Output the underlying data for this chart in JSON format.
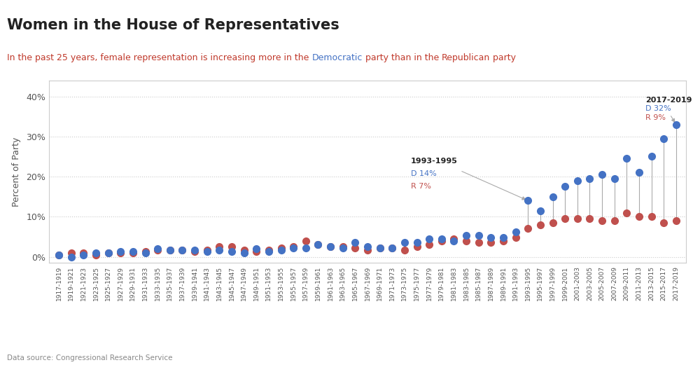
{
  "title": "Women in the House of Representatives",
  "ylabel": "Percent of Party",
  "datasource": "Data source: Congressional Research Service",
  "dem_color": "#4472c4",
  "rep_color": "#c0504d",
  "line_color": "#aaaaaa",
  "background_color": "#ffffff",
  "border_color": "#cccccc",
  "yticks": [
    0,
    10,
    20,
    30,
    40
  ],
  "ytick_labels": [
    "0%",
    "10%",
    "20%",
    "30%",
    "40%"
  ],
  "ylim": [
    -1.5,
    44
  ],
  "congress_terms": [
    "1917-1919",
    "1919-1921",
    "1921-1923",
    "1923-1925",
    "1925-1927",
    "1927-1929",
    "1929-1931",
    "1931-1933",
    "1933-1935",
    "1935-1937",
    "1937-1939",
    "1939-1941",
    "1941-1943",
    "1943-1945",
    "1945-1947",
    "1947-1949",
    "1949-1951",
    "1951-1953",
    "1953-1955",
    "1955-1957",
    "1957-1959",
    "1959-1961",
    "1961-1963",
    "1963-1965",
    "1965-1967",
    "1967-1969",
    "1969-1971",
    "1971-1973",
    "1973-1975",
    "1975-1977",
    "1977-1979",
    "1979-1981",
    "1981-1983",
    "1983-1985",
    "1985-1987",
    "1987-1989",
    "1989-1991",
    "1991-1993",
    "1993-1995",
    "1995-1997",
    "1997-1999",
    "1999-2001",
    "2001-2003",
    "2003-2005",
    "2005-2007",
    "2007-2009",
    "2009-2011",
    "2011-2013",
    "2013-2015",
    "2015-2017",
    "2017-2019"
  ],
  "dem_pct": [
    0.4,
    0.0,
    0.4,
    0.9,
    0.9,
    1.3,
    1.3,
    0.9,
    2.0,
    1.7,
    1.7,
    1.7,
    1.3,
    1.7,
    1.3,
    0.9,
    2.0,
    1.3,
    1.7,
    2.2,
    2.2,
    3.1,
    2.6,
    2.2,
    3.5,
    2.6,
    2.2,
    2.2,
    3.5,
    3.5,
    4.4,
    4.4,
    4.0,
    5.3,
    5.3,
    4.8,
    4.8,
    6.2,
    14.0,
    11.5,
    15.0,
    17.5,
    19.0,
    19.5,
    20.5,
    19.5,
    24.5,
    21.0,
    25.0,
    29.5,
    33.0
  ],
  "rep_pct": [
    0.4,
    0.9,
    0.9,
    0.4,
    0.9,
    0.9,
    0.9,
    1.3,
    1.7,
    1.7,
    1.7,
    1.3,
    1.7,
    2.6,
    2.6,
    1.7,
    1.3,
    1.7,
    2.2,
    2.6,
    4.0,
    3.1,
    2.6,
    2.6,
    2.2,
    1.7,
    2.2,
    2.2,
    1.7,
    2.6,
    3.1,
    4.0,
    4.4,
    4.0,
    3.5,
    3.5,
    4.0,
    4.8,
    7.0,
    8.0,
    8.5,
    9.5,
    9.5,
    9.5,
    9.0,
    9.0,
    11.0,
    10.0,
    10.0,
    8.5,
    9.0
  ],
  "subtitle_text": "In the past 25 years, female representation is increasing more in the Democratic party than in the Republican party",
  "subtitle_dem_word": "Democratic",
  "subtitle_rep_word": "Republican",
  "subtitle_color_base": "#c0392b",
  "subtitle_color_dem": "#4472c4",
  "subtitle_color_rep": "#c0392b"
}
